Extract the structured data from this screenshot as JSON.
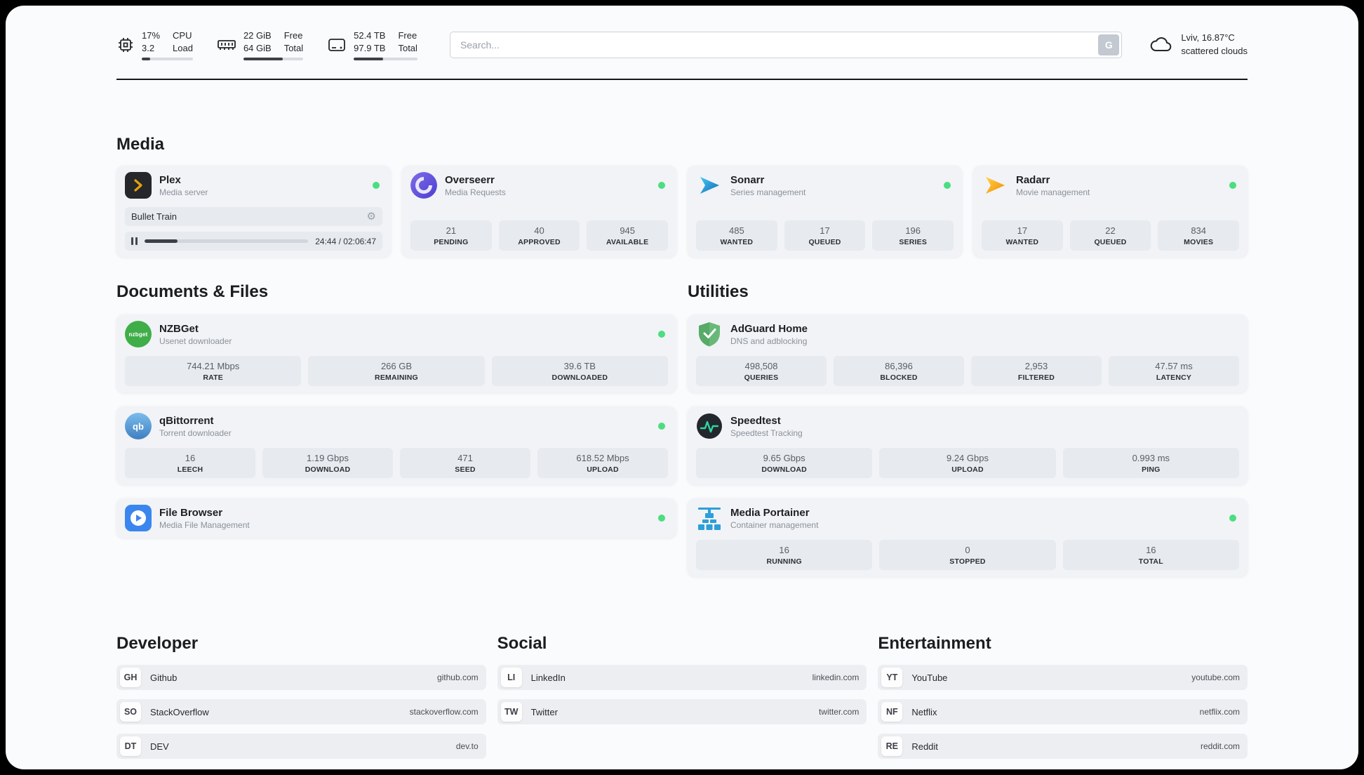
{
  "colors": {
    "status_online": "#4ade80",
    "plex_accent": "#e5a00d",
    "panel_bg": "#fafbfc",
    "card_bg": "#f1f3f6",
    "tile_bg": "#e7eaee"
  },
  "header": {
    "system": [
      {
        "icon": "cpu-icon",
        "top_value": "17%",
        "bottom_value": "3.2",
        "top_label": "CPU",
        "bottom_label": "Load",
        "progress_pct": 17
      },
      {
        "icon": "ram-icon",
        "top_value": "22 GiB",
        "bottom_value": "64 GiB",
        "top_label": "Free",
        "bottom_label": "Total",
        "progress_pct": 66
      },
      {
        "icon": "disk-icon",
        "top_value": "52.4 TB",
        "bottom_value": "97.9 TB",
        "top_label": "Free",
        "bottom_label": "Total",
        "progress_pct": 46
      }
    ],
    "search": {
      "placeholder": "Search...",
      "provider_label": "G"
    },
    "weather": {
      "location": "Lviv, 16.87°C",
      "condition": "scattered clouds"
    }
  },
  "media": {
    "title": "Media",
    "apps": [
      {
        "name": "Plex",
        "subtitle": "Media server",
        "status_dot": true,
        "now_playing": {
          "title": "Bullet Train",
          "time": "24:44 / 02:06:47",
          "progress_pct": 20
        }
      },
      {
        "name": "Overseerr",
        "subtitle": "Media Requests",
        "status_dot": true,
        "stats": [
          {
            "value": "21",
            "label": "PENDING"
          },
          {
            "value": "40",
            "label": "APPROVED"
          },
          {
            "value": "945",
            "label": "AVAILABLE"
          }
        ]
      },
      {
        "name": "Sonarr",
        "subtitle": "Series management",
        "status_dot": true,
        "stats": [
          {
            "value": "485",
            "label": "WANTED"
          },
          {
            "value": "17",
            "label": "QUEUED"
          },
          {
            "value": "196",
            "label": "SERIES"
          }
        ]
      },
      {
        "name": "Radarr",
        "subtitle": "Movie management",
        "status_dot": true,
        "stats": [
          {
            "value": "17",
            "label": "WANTED"
          },
          {
            "value": "22",
            "label": "QUEUED"
          },
          {
            "value": "834",
            "label": "MOVIES"
          }
        ]
      }
    ]
  },
  "documents": {
    "title": "Documents & Files",
    "apps": [
      {
        "name": "NZBGet",
        "subtitle": "Usenet downloader",
        "status_dot": true,
        "icon_text": "nzbget",
        "stats": [
          {
            "value": "744.21 Mbps",
            "label": "RATE"
          },
          {
            "value": "266 GB",
            "label": "REMAINING"
          },
          {
            "value": "39.6 TB",
            "label": "DOWNLOADED"
          }
        ]
      },
      {
        "name": "qBittorrent",
        "subtitle": "Torrent downloader",
        "status_dot": true,
        "icon_text": "qb",
        "stats": [
          {
            "value": "16",
            "label": "LEECH"
          },
          {
            "value": "1.19 Gbps",
            "label": "DOWNLOAD"
          },
          {
            "value": "471",
            "label": "SEED"
          },
          {
            "value": "618.52 Mbps",
            "label": "UPLOAD"
          }
        ]
      },
      {
        "name": "File Browser",
        "subtitle": "Media File Management",
        "status_dot": true,
        "stats": []
      }
    ]
  },
  "utilities": {
    "title": "Utilities",
    "apps": [
      {
        "name": "AdGuard Home",
        "subtitle": "DNS and adblocking",
        "status_dot": false,
        "stats": [
          {
            "value": "498,508",
            "label": "QUERIES"
          },
          {
            "value": "86,396",
            "label": "BLOCKED"
          },
          {
            "value": "2,953",
            "label": "FILTERED"
          },
          {
            "value": "47.57 ms",
            "label": "LATENCY"
          }
        ]
      },
      {
        "name": "Speedtest",
        "subtitle": "Speedtest Tracking",
        "status_dot": false,
        "stats": [
          {
            "value": "9.65 Gbps",
            "label": "DOWNLOAD"
          },
          {
            "value": "9.24 Gbps",
            "label": "UPLOAD"
          },
          {
            "value": "0.993 ms",
            "label": "PING"
          }
        ]
      },
      {
        "name": "Media Portainer",
        "subtitle": "Container management",
        "status_dot": true,
        "stats": [
          {
            "value": "16",
            "label": "RUNNING"
          },
          {
            "value": "0",
            "label": "STOPPED"
          },
          {
            "value": "16",
            "label": "TOTAL"
          }
        ]
      }
    ]
  },
  "bookmarks": {
    "groups": [
      {
        "title": "Developer",
        "links": [
          {
            "abbr": "GH",
            "name": "Github",
            "domain": "github.com"
          },
          {
            "abbr": "SO",
            "name": "StackOverflow",
            "domain": "stackoverflow.com"
          },
          {
            "abbr": "DT",
            "name": "DEV",
            "domain": "dev.to"
          }
        ]
      },
      {
        "title": "Social",
        "links": [
          {
            "abbr": "LI",
            "name": "LinkedIn",
            "domain": "linkedin.com"
          },
          {
            "abbr": "TW",
            "name": "Twitter",
            "domain": "twitter.com"
          }
        ]
      },
      {
        "title": "Entertainment",
        "links": [
          {
            "abbr": "YT",
            "name": "YouTube",
            "domain": "youtube.com"
          },
          {
            "abbr": "NF",
            "name": "Netflix",
            "domain": "netflix.com"
          },
          {
            "abbr": "RE",
            "name": "Reddit",
            "domain": "reddit.com"
          }
        ]
      }
    ]
  }
}
